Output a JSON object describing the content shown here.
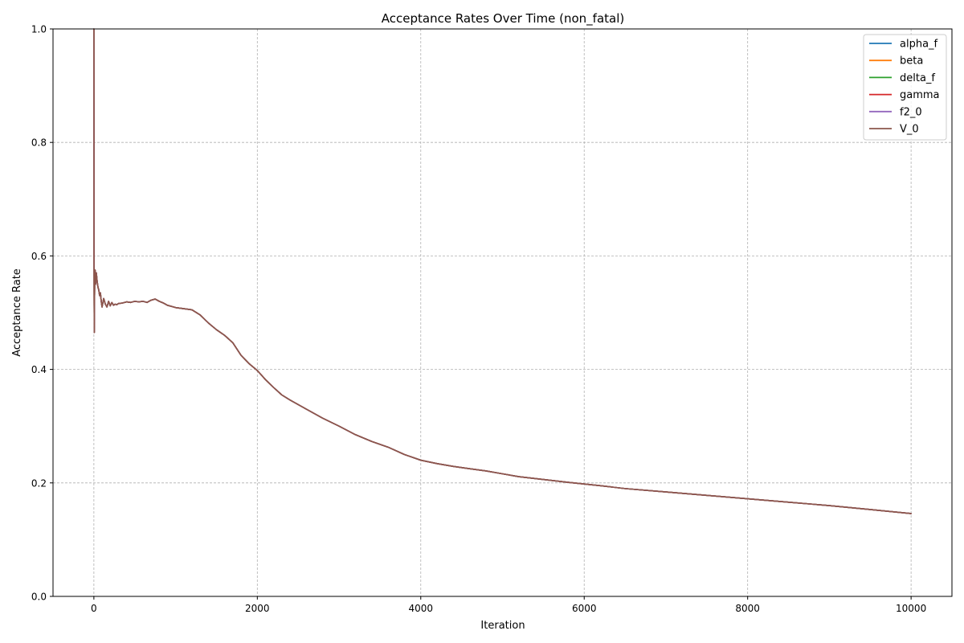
{
  "chart_data": {
    "type": "line",
    "title": "Acceptance Rates Over Time (non_fatal)",
    "xlabel": "Iteration",
    "ylabel": "Acceptance Rate",
    "xlim": [
      -500,
      10500
    ],
    "ylim": [
      0.0,
      1.0
    ],
    "grid": true,
    "legend_position": "top-right",
    "xticks": [
      0,
      2000,
      4000,
      6000,
      8000,
      10000
    ],
    "yticks": [
      0.0,
      0.2,
      0.4,
      0.6,
      0.8,
      1.0
    ],
    "xtick_labels": [
      "0",
      "2000",
      "4000",
      "6000",
      "8000",
      "10000"
    ],
    "ytick_labels": [
      "0.0",
      "0.2",
      "0.4",
      "0.6",
      "0.8",
      "1.0"
    ],
    "x": [
      0,
      2,
      5,
      10,
      15,
      20,
      30,
      40,
      50,
      60,
      70,
      80,
      90,
      100,
      120,
      140,
      160,
      180,
      200,
      220,
      240,
      260,
      280,
      300,
      350,
      400,
      450,
      500,
      550,
      600,
      650,
      700,
      750,
      800,
      850,
      900,
      1000,
      1100,
      1200,
      1300,
      1400,
      1500,
      1600,
      1700,
      1800,
      1900,
      2000,
      2100,
      2200,
      2300,
      2400,
      2600,
      2800,
      3000,
      3200,
      3400,
      3600,
      3800,
      4000,
      4200,
      4400,
      4600,
      4800,
      5000,
      5200,
      5500,
      5800,
      6000,
      6200,
      6500,
      7000,
      7500,
      8000,
      8500,
      9000,
      9500,
      10000
    ],
    "series": [
      {
        "name": "alpha_f",
        "color": "#1f77b4",
        "values": [
          1.0,
          0.6,
          0.465,
          0.56,
          0.575,
          0.55,
          0.57,
          0.555,
          0.545,
          0.54,
          0.53,
          0.535,
          0.52,
          0.51,
          0.525,
          0.515,
          0.51,
          0.52,
          0.512,
          0.518,
          0.513,
          0.515,
          0.514,
          0.516,
          0.517,
          0.519,
          0.518,
          0.52,
          0.519,
          0.52,
          0.518,
          0.522,
          0.524,
          0.52,
          0.517,
          0.513,
          0.509,
          0.507,
          0.505,
          0.496,
          0.482,
          0.47,
          0.46,
          0.447,
          0.425,
          0.41,
          0.398,
          0.382,
          0.368,
          0.355,
          0.346,
          0.33,
          0.314,
          0.3,
          0.285,
          0.273,
          0.263,
          0.25,
          0.24,
          0.234,
          0.229,
          0.225,
          0.221,
          0.216,
          0.211,
          0.206,
          0.201,
          0.198,
          0.195,
          0.19,
          0.184,
          0.178,
          0.172,
          0.166,
          0.16,
          0.153,
          0.146
        ]
      },
      {
        "name": "beta",
        "color": "#ff7f0e",
        "values": [
          1.0,
          0.6,
          0.465,
          0.56,
          0.575,
          0.55,
          0.57,
          0.555,
          0.545,
          0.54,
          0.53,
          0.535,
          0.52,
          0.51,
          0.525,
          0.515,
          0.51,
          0.52,
          0.512,
          0.518,
          0.513,
          0.515,
          0.514,
          0.516,
          0.517,
          0.519,
          0.518,
          0.52,
          0.519,
          0.52,
          0.518,
          0.522,
          0.524,
          0.52,
          0.517,
          0.513,
          0.509,
          0.507,
          0.505,
          0.496,
          0.482,
          0.47,
          0.46,
          0.447,
          0.425,
          0.41,
          0.398,
          0.382,
          0.368,
          0.355,
          0.346,
          0.33,
          0.314,
          0.3,
          0.285,
          0.273,
          0.263,
          0.25,
          0.24,
          0.234,
          0.229,
          0.225,
          0.221,
          0.216,
          0.211,
          0.206,
          0.201,
          0.198,
          0.195,
          0.19,
          0.184,
          0.178,
          0.172,
          0.166,
          0.16,
          0.153,
          0.146
        ]
      },
      {
        "name": "delta_f",
        "color": "#2ca02c",
        "values": [
          1.0,
          0.6,
          0.465,
          0.56,
          0.575,
          0.55,
          0.57,
          0.555,
          0.545,
          0.54,
          0.53,
          0.535,
          0.52,
          0.51,
          0.525,
          0.515,
          0.51,
          0.52,
          0.512,
          0.518,
          0.513,
          0.515,
          0.514,
          0.516,
          0.517,
          0.519,
          0.518,
          0.52,
          0.519,
          0.52,
          0.518,
          0.522,
          0.524,
          0.52,
          0.517,
          0.513,
          0.509,
          0.507,
          0.505,
          0.496,
          0.482,
          0.47,
          0.46,
          0.447,
          0.425,
          0.41,
          0.398,
          0.382,
          0.368,
          0.355,
          0.346,
          0.33,
          0.314,
          0.3,
          0.285,
          0.273,
          0.263,
          0.25,
          0.24,
          0.234,
          0.229,
          0.225,
          0.221,
          0.216,
          0.211,
          0.206,
          0.201,
          0.198,
          0.195,
          0.19,
          0.184,
          0.178,
          0.172,
          0.166,
          0.16,
          0.153,
          0.146
        ]
      },
      {
        "name": "gamma",
        "color": "#d62728",
        "values": [
          1.0,
          0.6,
          0.465,
          0.56,
          0.575,
          0.55,
          0.57,
          0.555,
          0.545,
          0.54,
          0.53,
          0.535,
          0.52,
          0.51,
          0.525,
          0.515,
          0.51,
          0.52,
          0.512,
          0.518,
          0.513,
          0.515,
          0.514,
          0.516,
          0.517,
          0.519,
          0.518,
          0.52,
          0.519,
          0.52,
          0.518,
          0.522,
          0.524,
          0.52,
          0.517,
          0.513,
          0.509,
          0.507,
          0.505,
          0.496,
          0.482,
          0.47,
          0.46,
          0.447,
          0.425,
          0.41,
          0.398,
          0.382,
          0.368,
          0.355,
          0.346,
          0.33,
          0.314,
          0.3,
          0.285,
          0.273,
          0.263,
          0.25,
          0.24,
          0.234,
          0.229,
          0.225,
          0.221,
          0.216,
          0.211,
          0.206,
          0.201,
          0.198,
          0.195,
          0.19,
          0.184,
          0.178,
          0.172,
          0.166,
          0.16,
          0.153,
          0.146
        ]
      },
      {
        "name": "f2_0",
        "color": "#9467bd",
        "values": [
          1.0,
          0.6,
          0.465,
          0.56,
          0.575,
          0.55,
          0.57,
          0.555,
          0.545,
          0.54,
          0.53,
          0.535,
          0.52,
          0.51,
          0.525,
          0.515,
          0.51,
          0.52,
          0.512,
          0.518,
          0.513,
          0.515,
          0.514,
          0.516,
          0.517,
          0.519,
          0.518,
          0.52,
          0.519,
          0.52,
          0.518,
          0.522,
          0.524,
          0.52,
          0.517,
          0.513,
          0.509,
          0.507,
          0.505,
          0.496,
          0.482,
          0.47,
          0.46,
          0.447,
          0.425,
          0.41,
          0.398,
          0.382,
          0.368,
          0.355,
          0.346,
          0.33,
          0.314,
          0.3,
          0.285,
          0.273,
          0.263,
          0.25,
          0.24,
          0.234,
          0.229,
          0.225,
          0.221,
          0.216,
          0.211,
          0.206,
          0.201,
          0.198,
          0.195,
          0.19,
          0.184,
          0.178,
          0.172,
          0.166,
          0.16,
          0.153,
          0.146
        ]
      },
      {
        "name": "V_0",
        "color": "#8c564b",
        "values": [
          1.0,
          0.6,
          0.465,
          0.56,
          0.575,
          0.55,
          0.57,
          0.555,
          0.545,
          0.54,
          0.53,
          0.535,
          0.52,
          0.51,
          0.525,
          0.515,
          0.51,
          0.52,
          0.512,
          0.518,
          0.513,
          0.515,
          0.514,
          0.516,
          0.517,
          0.519,
          0.518,
          0.52,
          0.519,
          0.52,
          0.518,
          0.522,
          0.524,
          0.52,
          0.517,
          0.513,
          0.509,
          0.507,
          0.505,
          0.496,
          0.482,
          0.47,
          0.46,
          0.447,
          0.425,
          0.41,
          0.398,
          0.382,
          0.368,
          0.355,
          0.346,
          0.33,
          0.314,
          0.3,
          0.285,
          0.273,
          0.263,
          0.25,
          0.24,
          0.234,
          0.229,
          0.225,
          0.221,
          0.216,
          0.211,
          0.206,
          0.201,
          0.198,
          0.195,
          0.19,
          0.184,
          0.178,
          0.172,
          0.166,
          0.16,
          0.153,
          0.146
        ]
      }
    ]
  }
}
